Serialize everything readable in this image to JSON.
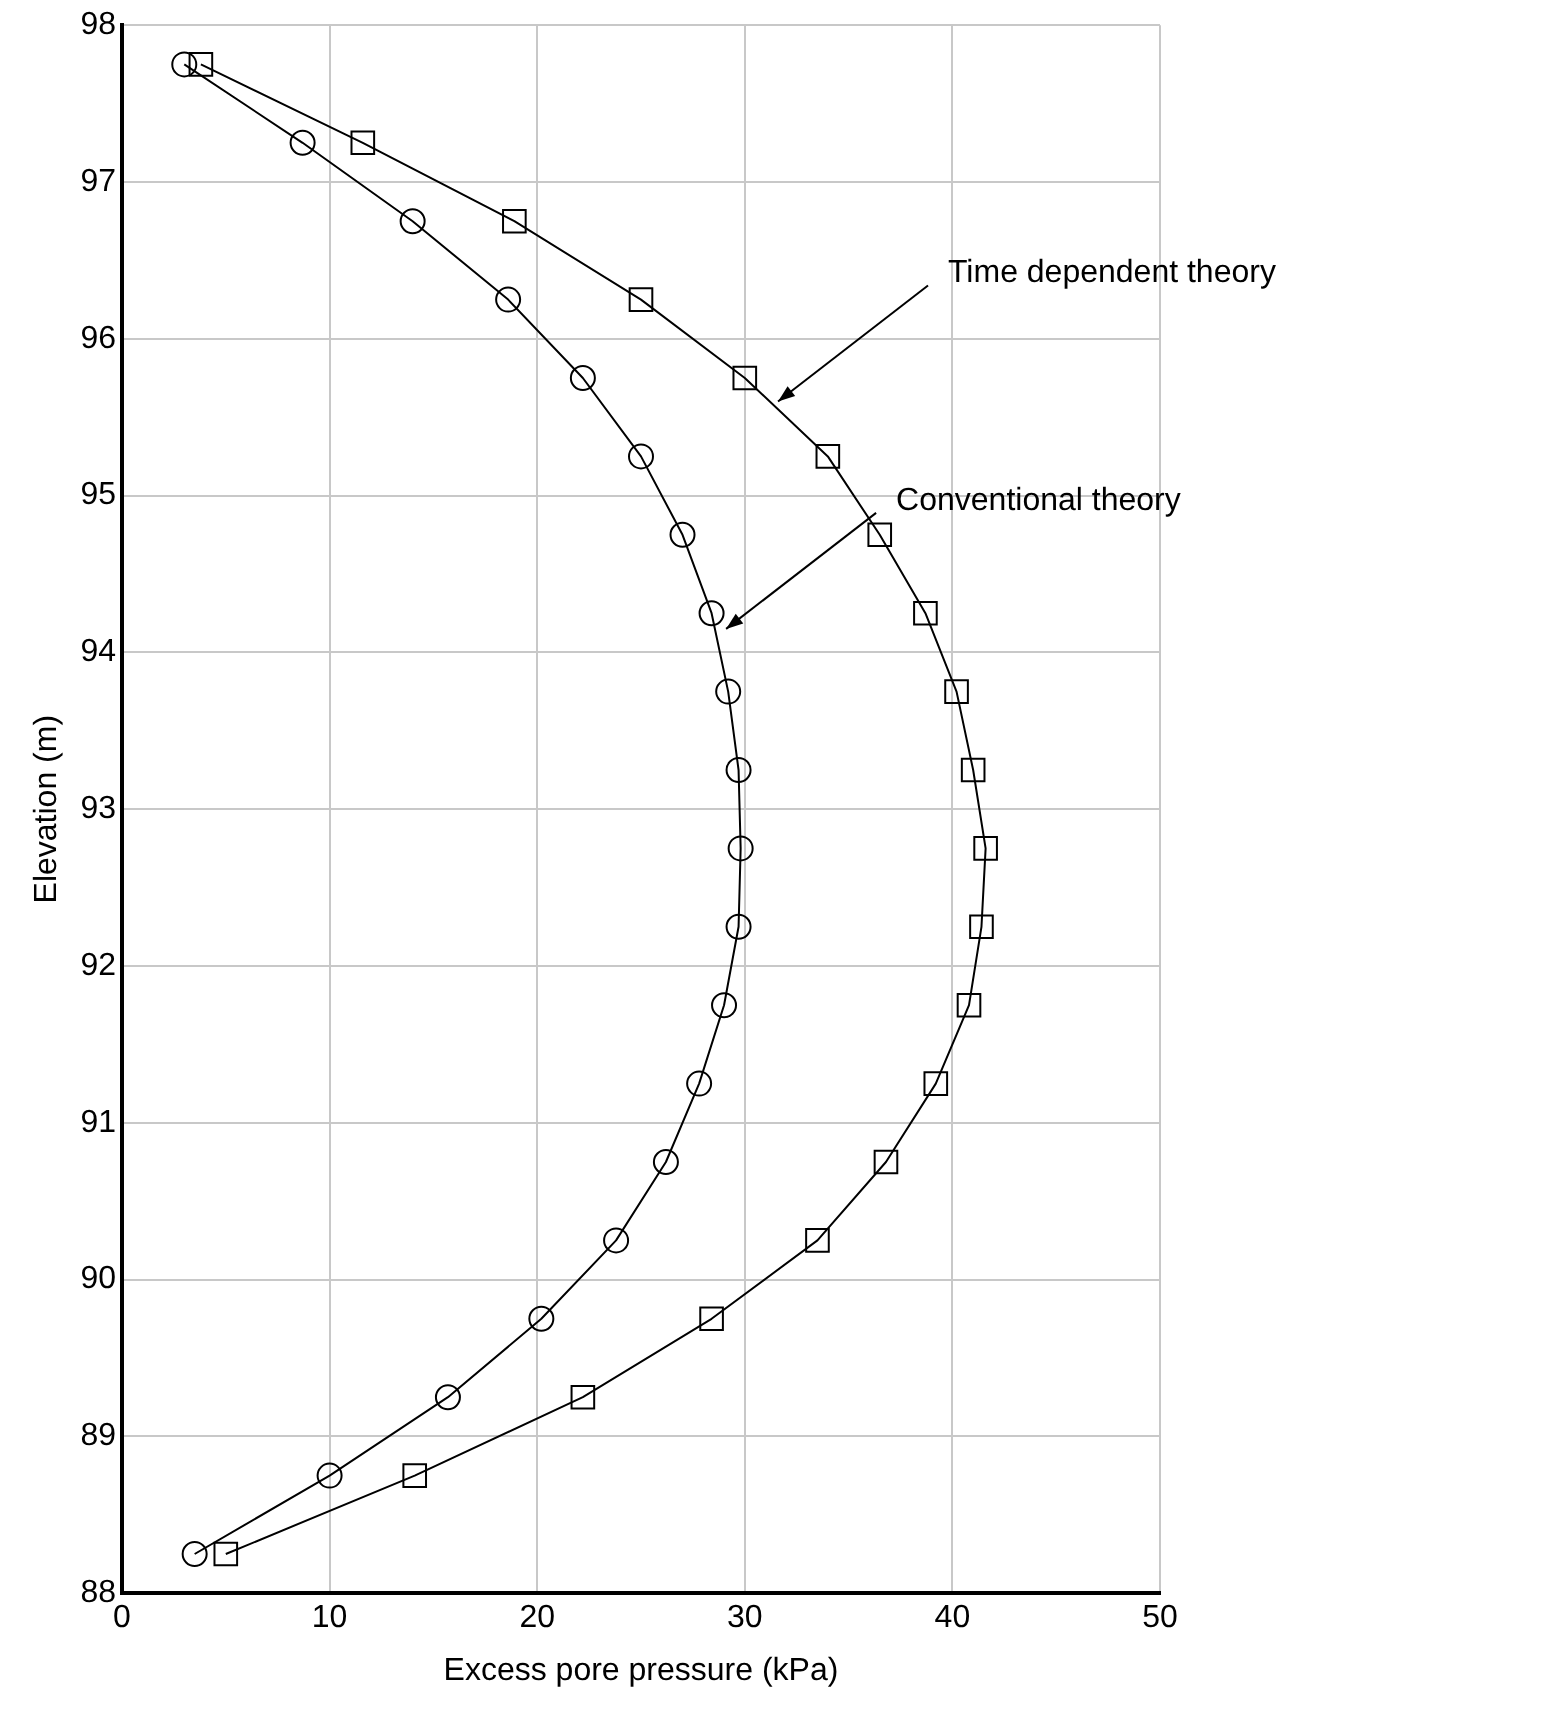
{
  "chart_data": {
    "type": "line",
    "xlabel": "Excess pore pressure (kPa)",
    "ylabel": "Elevation (m)",
    "xlim": [
      0,
      50
    ],
    "xticks": [
      0,
      10,
      20,
      30,
      40,
      50
    ],
    "ylim": [
      88,
      98
    ],
    "yticks": [
      88,
      89,
      90,
      91,
      92,
      93,
      94,
      95,
      96,
      97,
      98
    ],
    "grid": true,
    "legend": false,
    "series": [
      {
        "color": "#000000",
        "marker": "circle",
        "x": [
          3,
          8.7,
          14,
          18.6,
          22.2,
          25,
          27,
          28.4,
          29.2,
          29.7,
          29.8,
          29.7,
          29,
          27.8,
          26.2,
          23.8,
          20.2,
          15.7,
          10,
          3.5
        ],
        "values": [
          97.75,
          97.25,
          96.75,
          96.25,
          95.75,
          95.25,
          94.75,
          94.25,
          93.75,
          93.25,
          92.75,
          92.25,
          91.75,
          91.25,
          90.75,
          90.25,
          89.75,
          89.25,
          88.75,
          88.25
        ]
      },
      {
        "color": "#000000",
        "marker": "square",
        "x": [
          3.8,
          11.6,
          18.9,
          25,
          30,
          34,
          36.5,
          38.7,
          40.2,
          41,
          41.6,
          41.4,
          40.8,
          39.2,
          36.8,
          33.5,
          28.4,
          22.2,
          14.1,
          5
        ],
        "values": [
          97.75,
          97.25,
          96.75,
          96.25,
          95.75,
          95.25,
          94.75,
          94.25,
          93.75,
          93.25,
          92.75,
          92.25,
          91.75,
          91.25,
          90.75,
          90.25,
          89.75,
          89.25,
          88.75,
          88.25
        ]
      }
    ],
    "annotations": [
      {
        "text": "Time dependent theory",
        "x": 31.6,
        "y": 95.6
      },
      {
        "text": "Conventional theory",
        "x": 29.1,
        "y": 94.15
      }
    ]
  }
}
